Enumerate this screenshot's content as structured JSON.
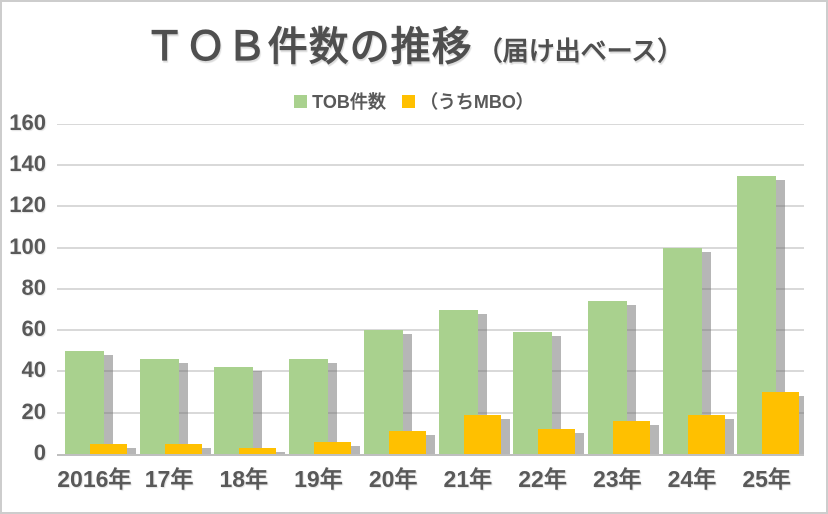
{
  "window": {
    "background": "#FFFFFF",
    "border_color": "#CDCDCD"
  },
  "chart_data": {
    "type": "bar",
    "title": "ＴＯＢ件数の推移",
    "subtitle": "（届け出ベース）",
    "categories": [
      "2016年",
      "17年",
      "18年",
      "19年",
      "20年",
      "21年",
      "22年",
      "23年",
      "24年",
      "25年"
    ],
    "series": [
      {
        "name": "TOB件数",
        "color": "#A9D18E",
        "values": [
          50,
          46,
          42,
          46,
          60,
          70,
          59,
          74,
          100,
          135
        ]
      },
      {
        "name": "（うちMBO）",
        "color": "#FFC000",
        "values": [
          5,
          5,
          3,
          6,
          11,
          19,
          12,
          16,
          19,
          30
        ]
      }
    ],
    "xlabel": "",
    "ylabel": "",
    "ylim": [
      0,
      160
    ],
    "ytick_step": 20,
    "yticks": [
      0,
      20,
      40,
      60,
      80,
      100,
      120,
      140,
      160
    ],
    "grid": true,
    "legend_position": "top-center",
    "bar_effect": "gray-drop-shadow"
  },
  "colors": {
    "axis_text": "#595959",
    "title_text": "#4F4F4F",
    "gridline": "#D9D9D9",
    "axis_line": "#BFBFBF",
    "bar_shadow": "#6E6E6E"
  }
}
